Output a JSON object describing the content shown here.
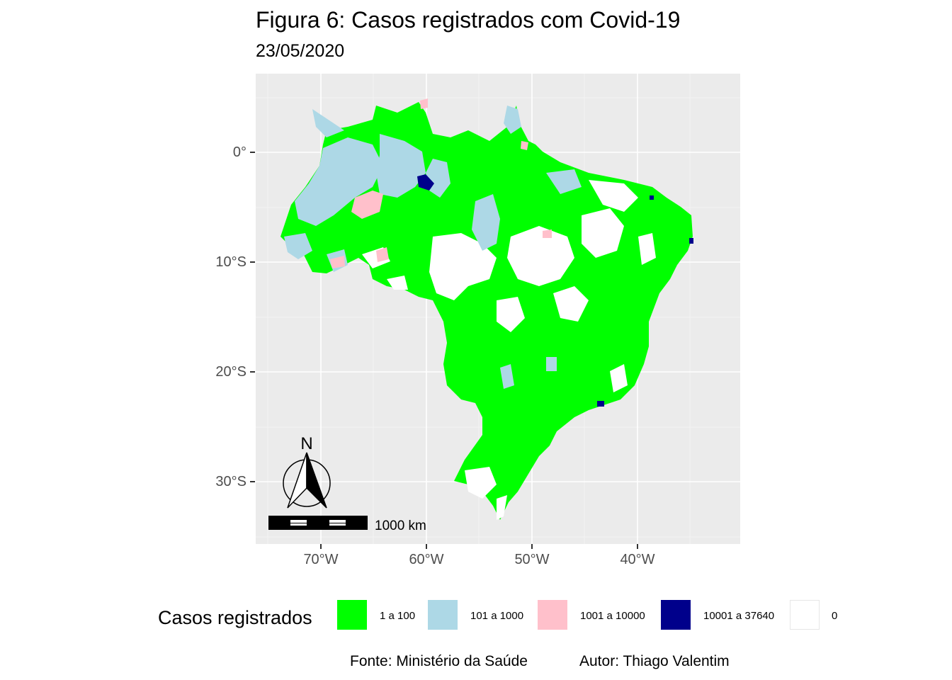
{
  "title": "Figura 6: Casos registrados com Covid-19",
  "subtitle": "23/05/2020",
  "axes": {
    "y_ticks": [
      "0°",
      "10°S",
      "20°S",
      "30°S"
    ],
    "x_ticks": [
      "70°W",
      "60°W",
      "50°W",
      "40°W"
    ],
    "grid": true
  },
  "north_arrow": {
    "label": "N"
  },
  "scale_bar": {
    "label": "1000 km"
  },
  "legend": {
    "title": "Casos registrados",
    "items": [
      {
        "label": "1 a 100",
        "color": "#00FF00"
      },
      {
        "label": "101 a 1000",
        "color": "#ADD8E6"
      },
      {
        "label": "1001 a 10000",
        "color": "#FFC0CB"
      },
      {
        "label": "10001 a 37640",
        "color": "#00008B"
      },
      {
        "label": "0",
        "color": "#FFFFFF"
      }
    ]
  },
  "caption": {
    "source": "Fonte: Ministério da Saúde",
    "author": "Autor: Thiago Valentim"
  },
  "colors": {
    "panel_background": "#EBEBEB",
    "grid": "#FFFFFF"
  }
}
